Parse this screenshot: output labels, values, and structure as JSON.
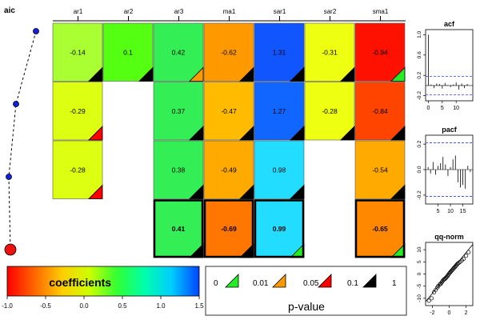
{
  "chart_data": [
    {
      "type": "heatmap",
      "title": "aic",
      "columns": [
        "ar1",
        "ar2",
        "ar3",
        "ma1",
        "sar1",
        "sar2",
        "sma1"
      ],
      "rows": [
        {
          "aic_rank": 4,
          "highlight": false,
          "cells": [
            {
              "value": "-0.14",
              "color": "#aaff33",
              "p": "black"
            },
            {
              "value": "0.1",
              "color": "#55ff11",
              "p": "black"
            },
            {
              "value": "0.42",
              "color": "#33ee55",
              "p": "orange"
            },
            {
              "value": "-0.62",
              "color": "#ff9900",
              "p": "black"
            },
            {
              "value": "1.31",
              "color": "#1155ff",
              "p": "black"
            },
            {
              "value": "-0.31",
              "color": "#eeff11",
              "p": "black"
            },
            {
              "value": "-0.94",
              "color": "#ff1100",
              "p": "green"
            }
          ]
        },
        {
          "aic_rank": 3,
          "highlight": false,
          "cells": [
            {
              "value": "-0.29",
              "color": "#ddff11",
              "p": "red"
            },
            null,
            {
              "value": "0.37",
              "color": "#33ee55",
              "p": "black"
            },
            {
              "value": "-0.47",
              "color": "#ffbb00",
              "p": "black"
            },
            {
              "value": "1.27",
              "color": "#1166ff",
              "p": "black"
            },
            {
              "value": "-0.28",
              "color": "#eeff11",
              "p": "black"
            },
            {
              "value": "-0.84",
              "color": "#ff4400",
              "p": "black"
            }
          ]
        },
        {
          "aic_rank": 2,
          "highlight": false,
          "cells": [
            {
              "value": "-0.28",
              "color": "#ddff11",
              "p": "red"
            },
            null,
            {
              "value": "0.38",
              "color": "#33ee55",
              "p": "black"
            },
            {
              "value": "-0.49",
              "color": "#ffaa00",
              "p": "black"
            },
            {
              "value": "0.98",
              "color": "#22ddff",
              "p": "black"
            },
            null,
            {
              "value": "-0.54",
              "color": "#ffaa00",
              "p": "black"
            }
          ]
        },
        {
          "aic_rank": 1,
          "highlight": true,
          "cells": [
            null,
            null,
            {
              "value": "0.41",
              "color": "#33ee55",
              "p": "black"
            },
            {
              "value": "-0.69",
              "color": "#ff7700",
              "p": "black"
            },
            {
              "value": "0.99",
              "color": "#22ddff",
              "p": "green"
            },
            null,
            {
              "value": "-0.65",
              "color": "#ff8800",
              "p": "green"
            }
          ]
        }
      ]
    },
    {
      "type": "colorbar",
      "label": "coefficients",
      "ticks": [
        "-1.0",
        "-0.5",
        "0.0",
        "0.5",
        "1.0",
        "1.5"
      ],
      "range": [
        -1.0,
        1.5
      ],
      "stops": [
        "#ff0000",
        "#ff6600",
        "#ffcc00",
        "#ccff00",
        "#33ff33",
        "#00ffaa",
        "#00ccff",
        "#0044ff"
      ]
    },
    {
      "type": "legend",
      "label": "p-value",
      "entries": [
        {
          "text": "0",
          "color": null
        },
        {
          "text": "0.01",
          "color": "#22ee22"
        },
        {
          "text": "0.05",
          "color": "#ff9900"
        },
        {
          "text": "0.1",
          "color": "#ff0000"
        },
        {
          "text": "1",
          "color": "#000000"
        }
      ]
    },
    {
      "type": "bar",
      "title": "acf",
      "xticks": [
        "0",
        "5",
        "10"
      ],
      "yticks": [
        "-0.2",
        "0.2",
        "0.6",
        "1.0"
      ],
      "xlim": [
        -1,
        16
      ],
      "ylim": [
        -0.3,
        1.1
      ],
      "ci": 0.18,
      "lags": [
        0,
        1,
        2,
        3,
        4,
        5,
        6,
        7,
        8,
        9,
        10,
        11,
        12,
        13,
        14
      ],
      "values": [
        1.0,
        0.02,
        -0.05,
        0.04,
        0.03,
        -0.06,
        0.05,
        0.01,
        -0.03,
        0.02,
        0.06,
        -0.08,
        0.04,
        -0.05,
        0.03
      ]
    },
    {
      "type": "bar",
      "title": "pacf",
      "xticks": [
        "5",
        "10",
        "15"
      ],
      "yticks": [
        "-0.2",
        "0.0",
        "0.2"
      ],
      "xlim": [
        0,
        19
      ],
      "ylim": [
        -0.27,
        0.27
      ],
      "ci": 0.21,
      "lags": [
        1,
        2,
        3,
        4,
        5,
        6,
        7,
        8,
        9,
        10,
        11,
        12,
        13,
        14,
        15,
        16,
        17,
        18
      ],
      "values": [
        0.02,
        -0.03,
        0.06,
        -0.04,
        0.03,
        0.05,
        0.1,
        0.04,
        -0.05,
        0.02,
        0.08,
        0.11,
        -0.1,
        -0.14,
        -0.12,
        -0.15,
        0.03,
        -0.02
      ]
    },
    {
      "type": "scatter",
      "title": "qq-norm",
      "xticks": [
        "-2",
        "0",
        "2"
      ],
      "yticks": [
        "-10",
        "-5",
        "0",
        "5",
        "10"
      ],
      "xlim": [
        -2.8,
        2.8
      ],
      "ylim": [
        -13,
        13
      ],
      "line": {
        "slope": 4.2,
        "intercept": 0.4
      },
      "points": [
        [
          -2.4,
          -11
        ],
        [
          -2.1,
          -10
        ],
        [
          -1.8,
          -7.5
        ],
        [
          -1.6,
          -6.5
        ],
        [
          -1.4,
          -5.5
        ],
        [
          -1.3,
          -5
        ],
        [
          -1.1,
          -4.2
        ],
        [
          -1.0,
          -4
        ],
        [
          -0.9,
          -3.5
        ],
        [
          -0.8,
          -3
        ],
        [
          -0.7,
          -2.5
        ],
        [
          -0.6,
          -2.2
        ],
        [
          -0.5,
          -2
        ],
        [
          -0.4,
          -1.6
        ],
        [
          -0.3,
          -1.2
        ],
        [
          -0.2,
          -0.8
        ],
        [
          -0.1,
          -0.3
        ],
        [
          0,
          0.2
        ],
        [
          0.1,
          0.6
        ],
        [
          0.2,
          1
        ],
        [
          0.3,
          1.4
        ],
        [
          0.4,
          1.8
        ],
        [
          0.5,
          2.2
        ],
        [
          0.6,
          2.6
        ],
        [
          0.7,
          3
        ],
        [
          0.8,
          3.4
        ],
        [
          0.9,
          3.8
        ],
        [
          1.0,
          4.2
        ],
        [
          1.1,
          4.5
        ],
        [
          1.3,
          5
        ],
        [
          1.5,
          5.6
        ],
        [
          1.7,
          6.2
        ],
        [
          2.0,
          7.5
        ],
        [
          2.3,
          9
        ]
      ]
    }
  ]
}
